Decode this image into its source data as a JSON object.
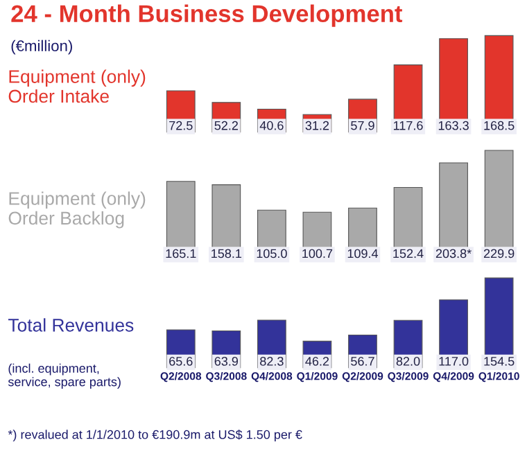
{
  "chart_data": [
    {
      "type": "bar",
      "title": "24 - Month Business Development",
      "ylabel": "Equipment (only)\nOrder Intake",
      "annotations": [
        "(€million)"
      ],
      "categories": [
        null,
        null,
        null,
        null,
        null,
        null,
        null,
        null
      ],
      "tick_labels": false,
      "series": [
        {
          "color": "#e2352c",
          "values": [
            72.5,
            52.2,
            40.6,
            31.2,
            57.9,
            117.6,
            163.3,
            168.5
          ],
          "value_labels": [
            "72.5",
            "52.2",
            "40.6",
            "31.2",
            "57.9",
            "117.6",
            "163.3",
            "168.5"
          ]
        }
      ]
    },
    {
      "type": "bar",
      "ylabel": "Equipment (only)\nOrder Backlog",
      "categories": [
        null,
        null,
        null,
        null,
        null,
        null,
        null,
        null
      ],
      "tick_labels": false,
      "series": [
        {
          "color": "#a9a9a9",
          "values": [
            165.1,
            158.1,
            105.0,
            100.7,
            109.4,
            152.4,
            203.8,
            229.9
          ],
          "value_labels": [
            "165.1",
            "158.1",
            "105.0",
            "100.7",
            "109.4",
            "152.4",
            "203.8*",
            "229.9"
          ]
        }
      ]
    },
    {
      "type": "bar",
      "ylabel": "Total Revenues",
      "annotations": [
        "(incl. equipment,\nservice, spare parts)",
        "*) revalued at 1/1/2010 to €190.9m at US$ 1.50 per €"
      ],
      "categories": [
        "Q2/2008",
        "Q3/2008",
        "Q4/2008",
        "Q1/2009",
        "Q2/2009",
        "Q3/2009",
        "Q4/2009",
        "Q1/2010"
      ],
      "tick_labels": "x",
      "series": [
        {
          "color": "#33339a",
          "values": [
            65.6,
            63.9,
            82.3,
            46.2,
            56.7,
            82.0,
            117.0,
            154.5
          ],
          "value_labels": [
            "65.6",
            "63.9",
            "82.3",
            "46.2",
            "56.7",
            "82.0",
            "117.0",
            "154.5"
          ]
        }
      ]
    }
  ]
}
